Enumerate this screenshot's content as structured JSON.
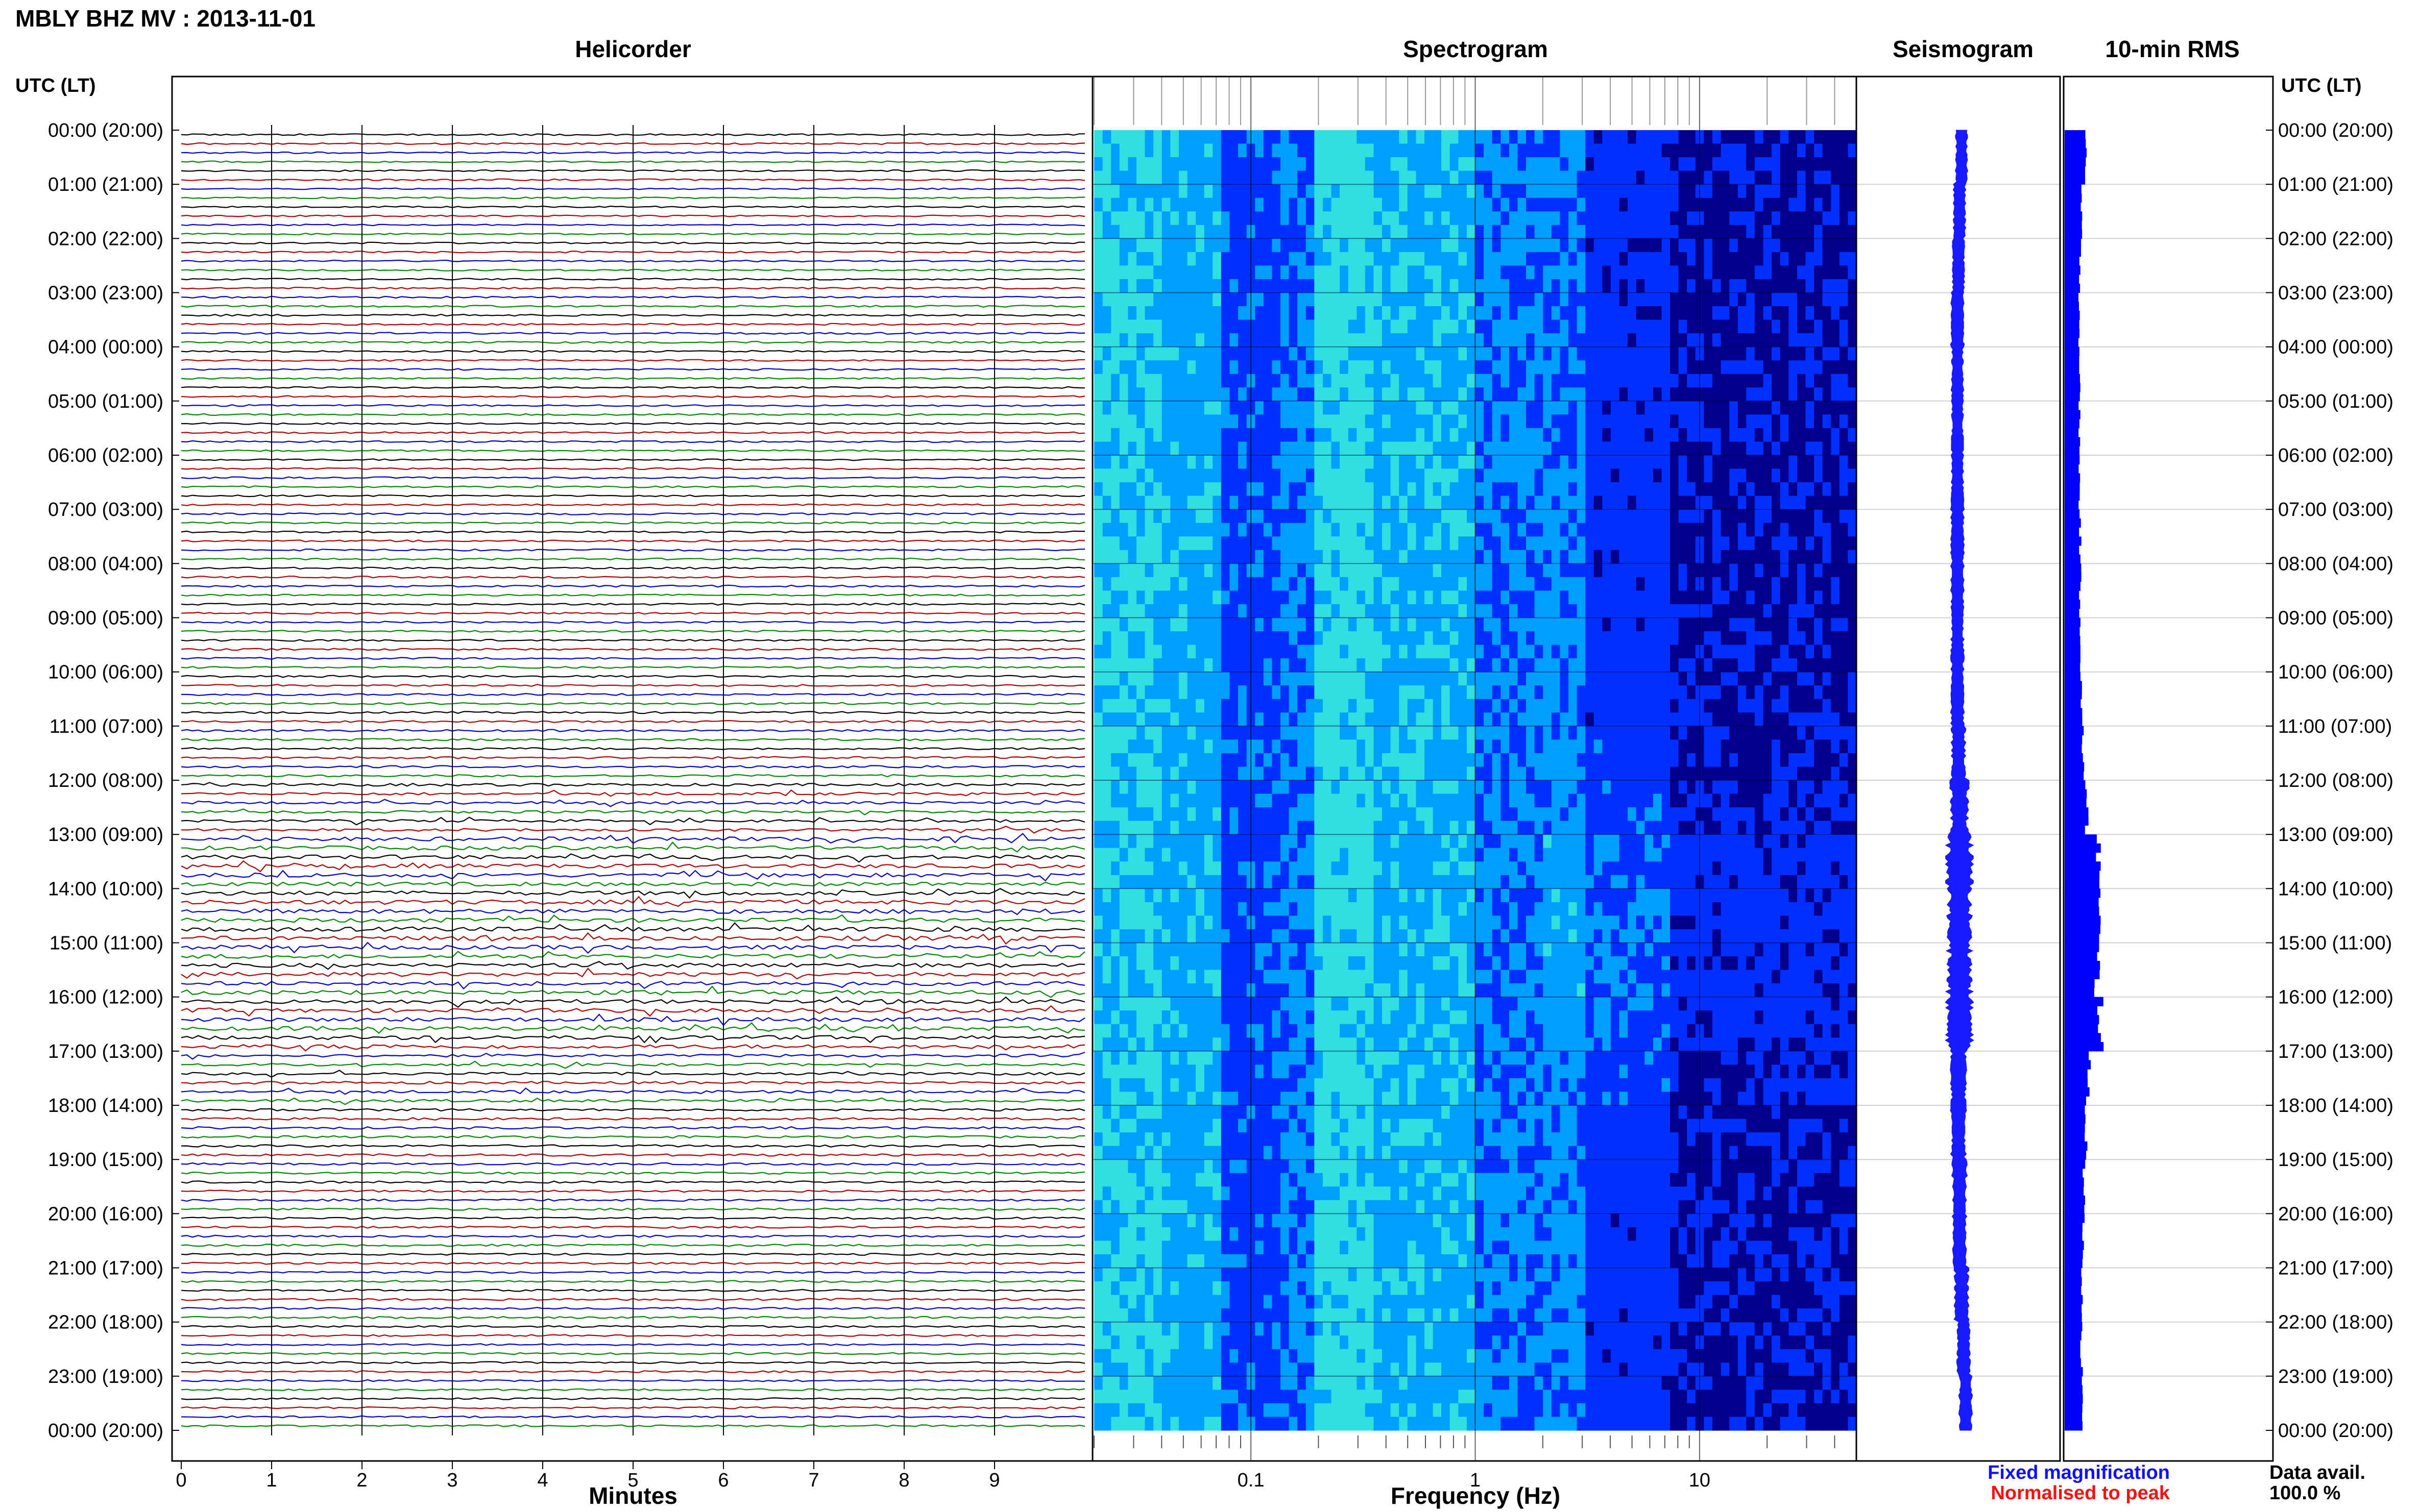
{
  "header": {
    "title": "MBLY BHZ MV : 2013-11-01",
    "time_axis_label": "UTC (LT)"
  },
  "panels": {
    "helicorder": "Helicorder",
    "spectrogram": "Spectrogram",
    "seismogram": "Seismogram",
    "rms": "10-min RMS"
  },
  "time_labels": [
    "00:00 (20:00)",
    "01:00 (21:00)",
    "02:00 (22:00)",
    "03:00 (23:00)",
    "04:00 (00:00)",
    "05:00 (01:00)",
    "06:00 (02:00)",
    "07:00 (03:00)",
    "08:00 (04:00)",
    "09:00 (05:00)",
    "10:00 (06:00)",
    "11:00 (07:00)",
    "12:00 (08:00)",
    "13:00 (09:00)",
    "14:00 (10:00)",
    "15:00 (11:00)",
    "16:00 (12:00)",
    "17:00 (13:00)",
    "18:00 (14:00)",
    "19:00 (15:00)",
    "20:00 (16:00)",
    "21:00 (17:00)",
    "22:00 (18:00)",
    "23:00 (19:00)",
    "00:00 (20:00)"
  ],
  "legend": {
    "fixed": "Fixed magnification",
    "normalised": "Normalised to peak",
    "fixed_color": "#1010ff",
    "normalised_color": "#ff1010"
  },
  "availability": {
    "label": "Data avail.",
    "value": "100.0 %"
  },
  "chart_data": [
    {
      "type": "line",
      "name": "helicorder",
      "title": "Helicorder",
      "xlabel": "Minutes",
      "ylabel": "UTC (LT)",
      "x_ticks": [
        "0",
        "1",
        "2",
        "3",
        "4",
        "5",
        "6",
        "7",
        "8",
        "9"
      ],
      "xlim": [
        0,
        10
      ],
      "traces_per_hour": 6,
      "trace_colors": [
        "#000000",
        "#b00000",
        "#0000cc",
        "#008800"
      ],
      "relative_amplitude_per_hour": [
        1.0,
        0.9,
        1.0,
        1.1,
        1.0,
        1.0,
        1.0,
        1.1,
        1.1,
        1.1,
        1.2,
        1.3,
        1.6,
        2.4,
        2.6,
        2.5,
        2.4,
        1.6,
        1.4,
        1.3,
        1.2,
        1.2,
        1.1,
        1.1
      ]
    },
    {
      "type": "heatmap",
      "name": "spectrogram",
      "title": "Spectrogram",
      "xlabel": "Frequency (Hz)",
      "x_scale": "log",
      "x_ticks": [
        "0.1",
        "1",
        "10"
      ],
      "xlim": [
        0.02,
        50
      ],
      "colormap": [
        "#00008b",
        "#0030ff",
        "#00a0ff",
        "#30e0e0",
        "#a0f060"
      ]
    },
    {
      "type": "line",
      "name": "seismogram",
      "title": "Seismogram",
      "relative_envelope_per_hour": [
        0.3,
        0.3,
        0.3,
        0.35,
        0.3,
        0.3,
        0.3,
        0.35,
        0.35,
        0.35,
        0.35,
        0.4,
        0.6,
        1.0,
        0.9,
        0.95,
        1.0,
        0.5,
        0.45,
        0.45,
        0.4,
        0.4,
        0.35,
        0.35
      ],
      "drift": [
        0.0,
        -0.1,
        -0.15,
        -0.2,
        -0.2,
        -0.2,
        -0.2,
        -0.2,
        -0.2,
        -0.2,
        -0.2,
        -0.15,
        -0.1,
        -0.1,
        -0.1,
        -0.1,
        -0.1,
        -0.15,
        -0.15,
        -0.1,
        -0.1,
        0.0,
        0.1,
        0.2
      ]
    },
    {
      "type": "bar",
      "name": "rms",
      "title": "10-min RMS",
      "orientation": "horizontal",
      "color": "#0000ff",
      "relative_rms_per_hour": [
        0.35,
        0.25,
        0.22,
        0.2,
        0.2,
        0.2,
        0.2,
        0.22,
        0.22,
        0.24,
        0.25,
        0.3,
        0.4,
        0.75,
        0.72,
        0.7,
        0.8,
        0.45,
        0.38,
        0.34,
        0.3,
        0.28,
        0.26,
        0.26
      ]
    }
  ]
}
